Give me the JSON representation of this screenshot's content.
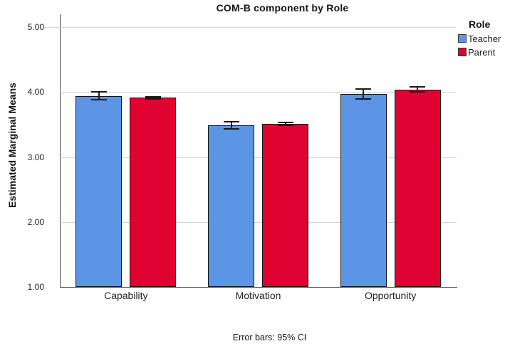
{
  "chart_data": {
    "type": "bar",
    "title": "COM-B component by Role",
    "categories": [
      "Capability",
      "Motivation",
      "Opportunity"
    ],
    "series": [
      {
        "name": "Teacher",
        "color": "#5B95E3",
        "values": [
          3.94,
          3.49,
          3.97
        ],
        "ci_95": [
          0.06,
          0.055,
          0.075
        ]
      },
      {
        "name": "Parent",
        "color": "#E00231",
        "values": [
          3.91,
          3.51,
          4.04
        ],
        "ci_95": [
          0.02,
          0.02,
          0.035
        ]
      }
    ],
    "xlabel": "",
    "ylabel": "Estimated Marginal Means",
    "ylim": [
      1.0,
      5.0
    ],
    "yticks": [
      "1.00",
      "2.00",
      "3.00",
      "4.00",
      "5.00"
    ],
    "grid": true,
    "legend_title": "Role",
    "legend_position": "top-right",
    "error_note": "Error bars: 95% CI",
    "colors": {
      "teacher_bar": "#5B95E3",
      "parent_bar": "#E00231",
      "bar_border": "#141414",
      "gridline": "#D5D5D5",
      "axis_line": "#4A4A4A"
    }
  }
}
